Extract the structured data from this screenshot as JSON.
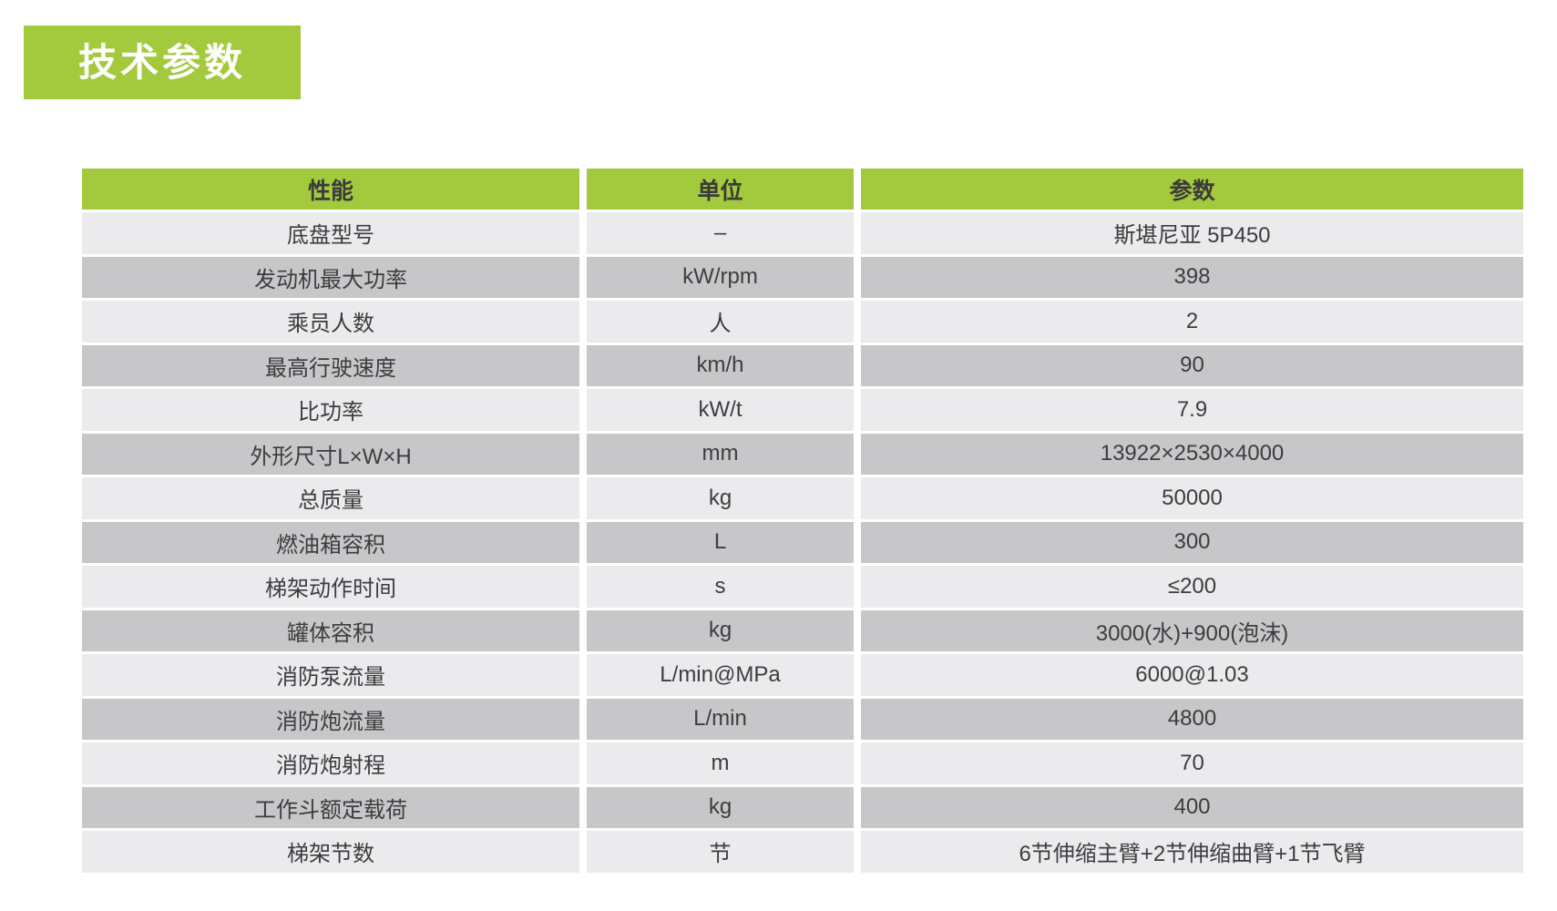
{
  "section": {
    "title": "技术参数"
  },
  "table": {
    "headers": {
      "performance": "性能",
      "unit": "单位",
      "value": "参数"
    },
    "rows": [
      {
        "label": "底盘型号",
        "unit": "–",
        "value": "斯堪尼亚 5P450"
      },
      {
        "label": "发动机最大功率",
        "unit": "kW/rpm",
        "value": "398"
      },
      {
        "label": "乘员人数",
        "unit": "人",
        "value": "2"
      },
      {
        "label": "最高行驶速度",
        "unit": "km/h",
        "value": "90"
      },
      {
        "label": "比功率",
        "unit": "kW/t",
        "value": "7.9"
      },
      {
        "label": "外形尺寸L×W×H",
        "unit": "mm",
        "value": "13922×2530×4000"
      },
      {
        "label": "总质量",
        "unit": "kg",
        "value": "50000"
      },
      {
        "label": "燃油箱容积",
        "unit": "L",
        "value": "300"
      },
      {
        "label": "梯架动作时间",
        "unit": "s",
        "value": "≤200"
      },
      {
        "label": "罐体容积",
        "unit": "kg",
        "value": "3000(水)+900(泡沫)"
      },
      {
        "label": "消防泵流量",
        "unit": "L/min@MPa",
        "value": "6000@1.03"
      },
      {
        "label": "消防炮流量",
        "unit": "L/min",
        "value": "4800"
      },
      {
        "label": "消防炮射程",
        "unit": "m",
        "value": "70"
      },
      {
        "label": "工作斗额定载荷",
        "unit": "kg",
        "value": "400"
      },
      {
        "label": "梯架节数",
        "unit": "节",
        "value": "6节伸缩主臂+2节伸缩曲臂+1节飞臂"
      }
    ]
  },
  "colors": {
    "accent_green": "#a3c93c",
    "row_light": "#ebebed",
    "row_dark": "#c7c7c9",
    "text": "#3d3d3f",
    "title_text": "#ffffff",
    "page_background": "#ffffff"
  }
}
